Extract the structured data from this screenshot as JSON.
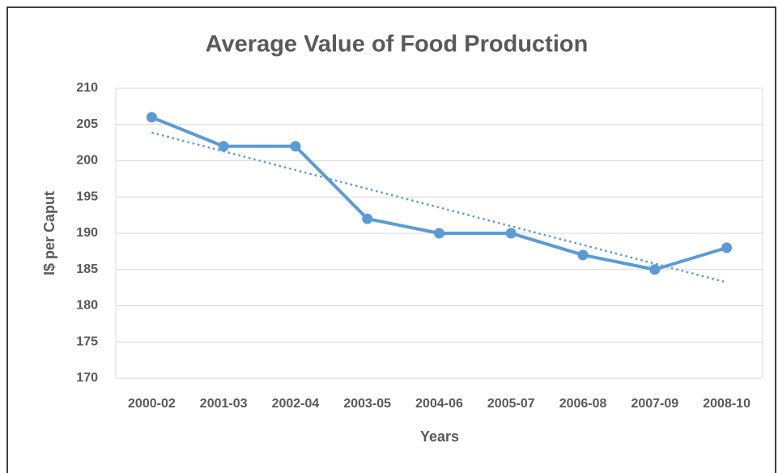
{
  "chart_data": {
    "type": "line",
    "title": "Average Value of Food Production",
    "x_label": "Years",
    "y_label": "I$ per Caput",
    "categories": [
      "2000-02",
      "2001-03",
      "2002-04",
      "2003-05",
      "2004-06",
      "2005-07",
      "2006-08",
      "2007-09",
      "2008-10"
    ],
    "values": [
      206,
      202,
      202,
      192,
      190,
      190,
      187,
      185,
      188
    ],
    "color": "#5b9bd5",
    "markers": true,
    "trendline": "linear",
    "ylim": [
      170,
      210
    ],
    "yticks": [
      170,
      175,
      180,
      185,
      190,
      195,
      200,
      205,
      210
    ],
    "grid": true
  }
}
